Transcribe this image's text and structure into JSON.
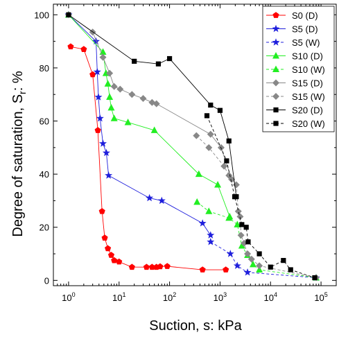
{
  "chart_data": {
    "type": "scatter",
    "xlabel_main": "Suction, s: kPa",
    "ylabel_prefix": "Degree of saturation, S",
    "ylabel_sub": "r",
    "ylabel_suffix": ": %",
    "xscale": "log",
    "xlim": [
      0.5,
      200000
    ],
    "ylim": [
      -2,
      104
    ],
    "x_ticks": [
      1,
      10,
      100,
      1000,
      10000,
      100000
    ],
    "x_tick_labels": [
      {
        "base": "10",
        "exp": "0"
      },
      {
        "base": "10",
        "exp": "1"
      },
      {
        "base": "10",
        "exp": "2"
      },
      {
        "base": "10",
        "exp": "3"
      },
      {
        "base": "10",
        "exp": "4"
      },
      {
        "base": "10",
        "exp": "5"
      }
    ],
    "y_ticks": [
      0,
      20,
      40,
      60,
      80,
      100
    ],
    "y_tick_labels": [
      "0",
      "20",
      "40",
      "60",
      "80",
      "100"
    ],
    "grid": false,
    "legend_position": "top-right",
    "series": [
      {
        "name": "S0 (D)",
        "color": "#ff0000",
        "marker": "pentagon",
        "dash": "solid",
        "points": [
          [
            1.1,
            88
          ],
          [
            2,
            87
          ],
          [
            3,
            77.5
          ],
          [
            3.8,
            56.5
          ],
          [
            4.6,
            26
          ],
          [
            5.2,
            16
          ],
          [
            6,
            12
          ],
          [
            7,
            9.5
          ],
          [
            8,
            7.5
          ],
          [
            10,
            7
          ],
          [
            18,
            5
          ],
          [
            35,
            5
          ],
          [
            45,
            5
          ],
          [
            55,
            5
          ],
          [
            65,
            5.2
          ],
          [
            90,
            5.3
          ],
          [
            450,
            4
          ],
          [
            1300,
            4
          ]
        ]
      },
      {
        "name": "S5 (D)",
        "color": "#1f1fdc",
        "marker": "star",
        "dash": "solid",
        "points": [
          [
            1,
            100
          ],
          [
            3.5,
            90
          ],
          [
            3.7,
            78.5
          ],
          [
            3.9,
            69
          ],
          [
            4.2,
            61
          ],
          [
            4.8,
            51.5
          ],
          [
            5.6,
            48
          ],
          [
            6.2,
            39.5
          ],
          [
            40,
            31
          ],
          [
            70,
            30
          ],
          [
            450,
            21.5
          ],
          [
            650,
            17
          ]
        ]
      },
      {
        "name": "S5 (W)",
        "color": "#1f1fdc",
        "marker": "star",
        "dash": "dashed",
        "points": [
          [
            650,
            14.5
          ],
          [
            1600,
            10
          ],
          [
            2200,
            5.5
          ],
          [
            3500,
            3
          ],
          [
            80000,
            1
          ]
        ]
      },
      {
        "name": "S10 (D)",
        "color": "#22ee22",
        "marker": "triangle",
        "dash": "solid",
        "points": [
          [
            1,
            100
          ],
          [
            4.8,
            86
          ],
          [
            5.5,
            78
          ],
          [
            6,
            74
          ],
          [
            6.5,
            69
          ],
          [
            7,
            65
          ],
          [
            8,
            61
          ],
          [
            15,
            59.5
          ],
          [
            50,
            56.5
          ],
          [
            380,
            40
          ],
          [
            900,
            36
          ],
          [
            1550,
            24
          ]
        ]
      },
      {
        "name": "S10 (W)",
        "color": "#22ee22",
        "marker": "triangle",
        "dash": "dashed",
        "points": [
          [
            350,
            29.5
          ],
          [
            600,
            26
          ],
          [
            1500,
            23.5
          ],
          [
            2200,
            21
          ],
          [
            2700,
            13
          ],
          [
            3500,
            9.5
          ],
          [
            4500,
            6
          ],
          [
            6000,
            4
          ],
          [
            80000,
            1
          ]
        ]
      },
      {
        "name": "S15 (D)",
        "color": "#888888",
        "marker": "diamond",
        "dash": "solid",
        "points": [
          [
            1,
            100
          ],
          [
            3,
            93.5
          ],
          [
            4.8,
            84
          ],
          [
            6.5,
            78
          ],
          [
            8,
            73
          ],
          [
            10.5,
            72
          ],
          [
            18,
            70
          ],
          [
            30,
            68.5
          ],
          [
            45,
            67
          ],
          [
            55,
            66.5
          ],
          [
            650,
            55
          ],
          [
            1050,
            50
          ],
          [
            1700,
            38
          ]
        ]
      },
      {
        "name": "S15 (W)",
        "color": "#888888",
        "marker": "diamond",
        "dash": "dashed",
        "points": [
          [
            340,
            54.5
          ],
          [
            600,
            50
          ],
          [
            1200,
            43
          ],
          [
            1500,
            39.5
          ],
          [
            2100,
            36
          ],
          [
            2300,
            26
          ],
          [
            2500,
            24
          ],
          [
            2600,
            17
          ],
          [
            3000,
            14
          ],
          [
            3500,
            10
          ],
          [
            4200,
            8
          ],
          [
            6000,
            5.5
          ],
          [
            80000,
            1
          ]
        ]
      },
      {
        "name": "S20 (D)",
        "color": "#000000",
        "marker": "square",
        "dash": "solid",
        "points": [
          [
            1,
            100
          ],
          [
            20,
            82.5
          ],
          [
            60,
            81.5
          ],
          [
            100,
            83.5
          ],
          [
            650,
            66
          ],
          [
            1000,
            64
          ],
          [
            1500,
            52.5
          ],
          [
            2100,
            31.5
          ]
        ]
      },
      {
        "name": "S20 (W)",
        "color": "#000000",
        "marker": "square",
        "dash": "dashed",
        "points": [
          [
            550,
            62
          ],
          [
            1350,
            45
          ],
          [
            1950,
            31.5
          ],
          [
            2700,
            21
          ],
          [
            3300,
            20
          ],
          [
            3600,
            14.5
          ],
          [
            6000,
            10
          ],
          [
            10000,
            5
          ],
          [
            18000,
            7.5
          ],
          [
            25000,
            4
          ],
          [
            75000,
            1
          ]
        ]
      }
    ]
  }
}
